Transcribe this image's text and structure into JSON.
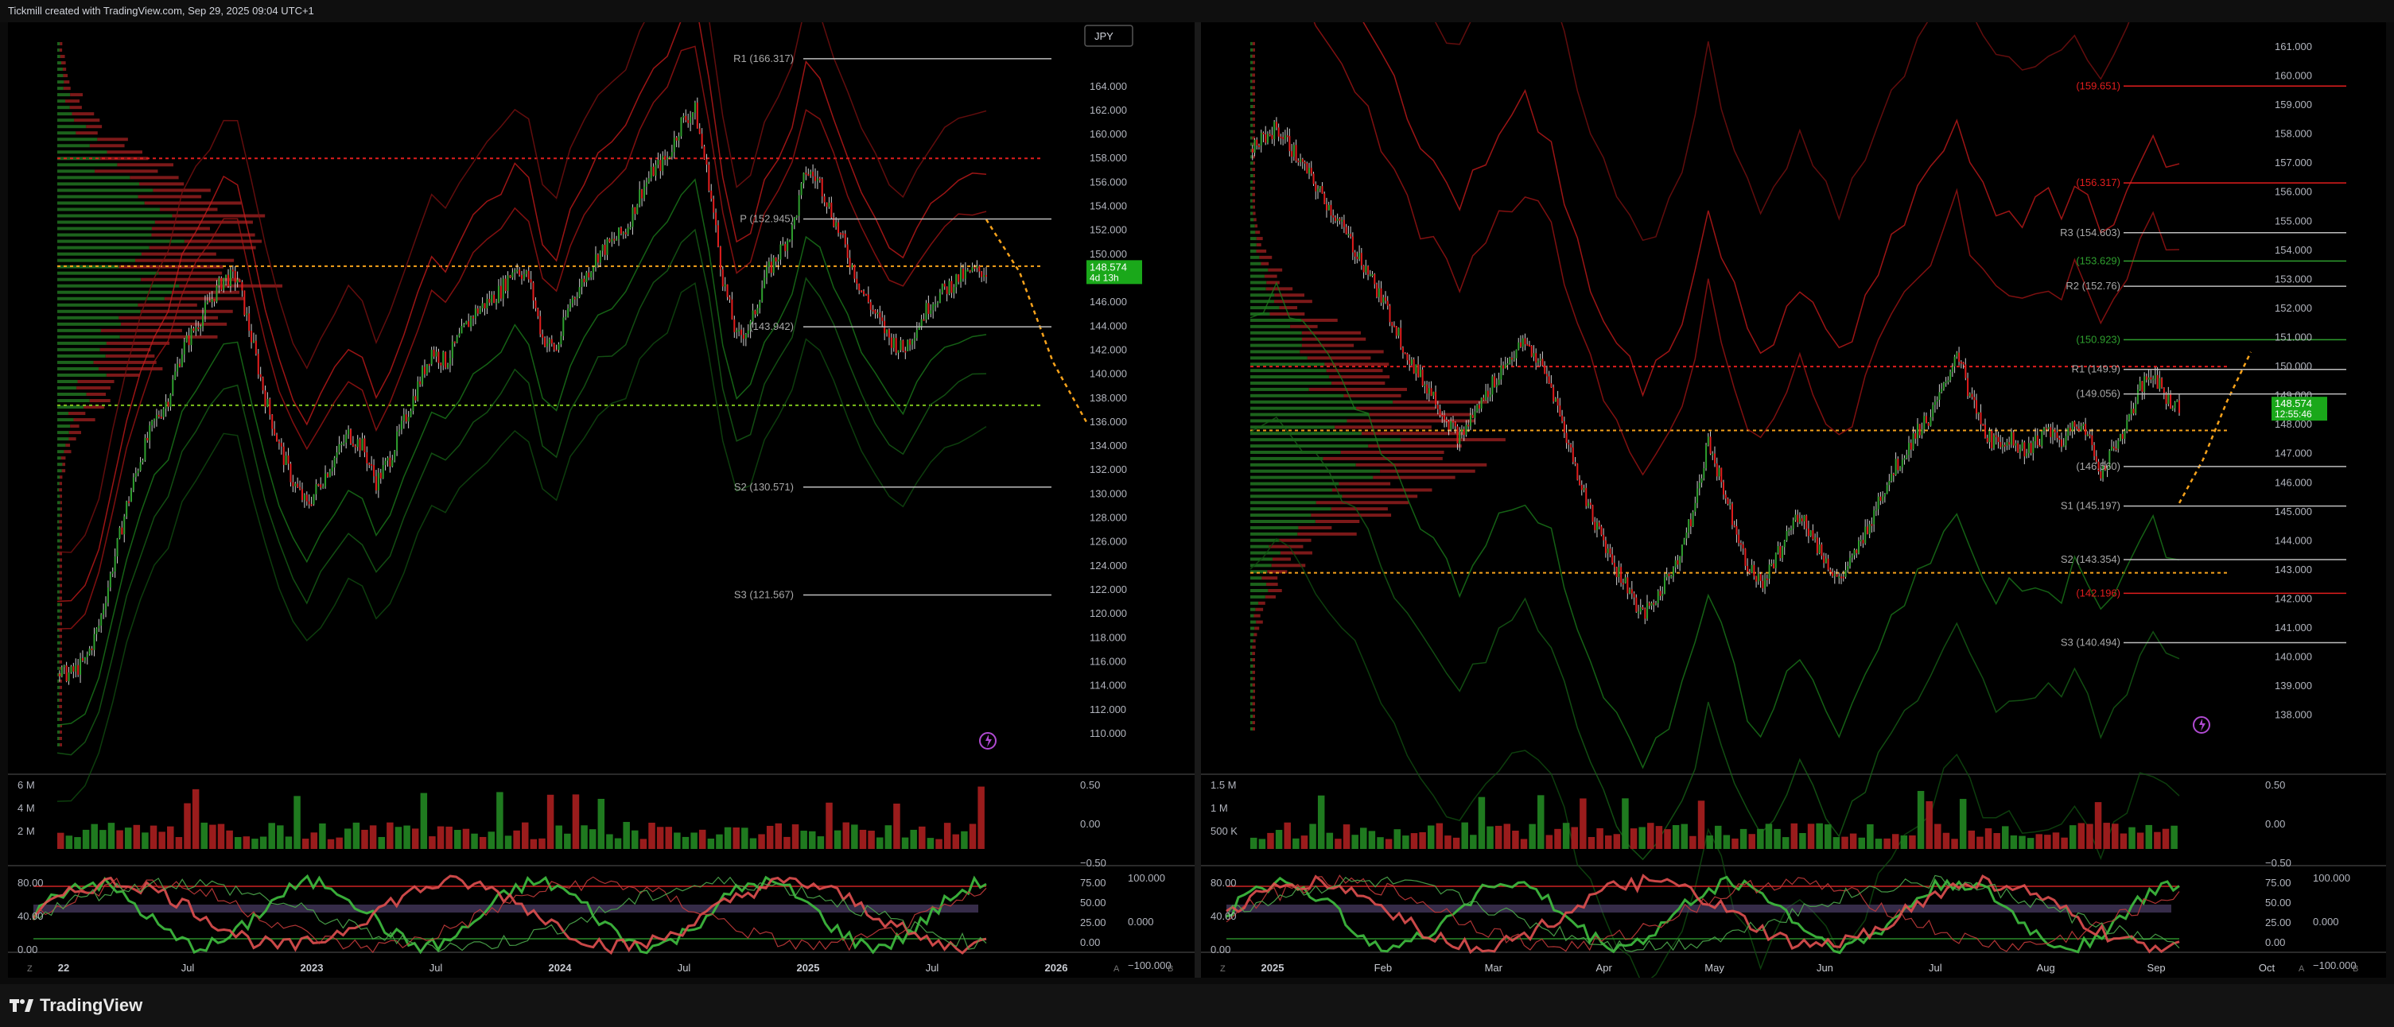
{
  "header": {
    "caption": "Tickmill created with TradingView.com, Sep 29, 2025 09:04 UTC+1"
  },
  "footer": {
    "brand": "TradingView"
  },
  "colors": {
    "up": "#2e9e2e",
    "down": "#e11d1d",
    "bg": "#000000",
    "accent": "#f7a21b",
    "price_badge": "#1aa81a"
  },
  "chart_data": [
    {
      "type": "candlestick",
      "title": "",
      "currency_button": "JPY",
      "price_label": "148.574",
      "countdown": "4d 13h",
      "y_ticks": [
        "164.000",
        "162.000",
        "160.000",
        "158.000",
        "156.000",
        "154.000",
        "152.000",
        "150.000",
        "148.000",
        "146.000",
        "144.000",
        "142.000",
        "140.000",
        "138.000",
        "136.000",
        "134.000",
        "132.000",
        "130.000",
        "128.000",
        "126.000",
        "124.000",
        "122.000",
        "120.000",
        "118.000",
        "116.000",
        "114.000",
        "112.000",
        "110.000"
      ],
      "ylim": [
        109.0,
        167.5
      ],
      "x_ticks": [
        "22",
        "Jul",
        "2023",
        "Jul",
        "2024",
        "Jul",
        "2025",
        "Jul",
        "2026"
      ],
      "pivots": [
        {
          "label": "R1 (166.317)",
          "value": 166.317
        },
        {
          "label": "P (152.945)",
          "value": 152.945
        },
        {
          "label": "(143.942)",
          "value": 143.942
        },
        {
          "label": "S2 (130.571)",
          "value": 130.571
        },
        {
          "label": "S3 (121.567)",
          "value": 121.567
        }
      ],
      "horizontal_lines": [
        {
          "value": 158.0,
          "color": "#e11d1d"
        },
        {
          "value": 149.0,
          "color": "#f7a21b"
        },
        {
          "value": 137.4,
          "color": "#7ec21b"
        }
      ],
      "price_path": [
        115,
        115,
        116,
        119,
        124,
        129,
        133,
        136,
        138,
        142,
        144,
        146,
        148,
        148,
        143,
        138,
        134,
        131,
        129,
        131,
        133,
        135,
        134,
        131,
        133,
        136,
        139,
        142,
        141,
        143,
        145,
        146,
        147,
        149,
        148,
        143,
        142,
        146,
        148,
        150,
        151,
        152,
        155,
        157,
        158,
        161,
        162,
        156,
        148,
        143,
        144,
        148,
        150,
        152,
        157,
        156,
        153,
        150,
        147,
        145,
        143,
        142,
        144,
        146,
        147,
        148,
        148.5,
        148.6
      ],
      "projection": [
        152.9,
        148.5,
        141,
        136
      ],
      "volume": {
        "ticks": [
          "6 M",
          "4 M",
          "2 M"
        ],
        "right_ticks": [
          "0.50",
          "0.00",
          "−0.50"
        ]
      },
      "oscillator": {
        "ticks": [
          "80.00",
          "40.00",
          "0.00"
        ],
        "right_ticks": [
          "75.00",
          "50.00",
          "25.00",
          "0.00"
        ],
        "right_ticks2": [
          "100.000",
          "0.000",
          "−100.000"
        ]
      }
    },
    {
      "type": "candlestick",
      "title": "",
      "price_label": "148.574",
      "countdown": "12:55:46",
      "y_ticks": [
        "161.000",
        "160.000",
        "159.000",
        "158.000",
        "157.000",
        "156.000",
        "155.000",
        "154.000",
        "153.000",
        "152.000",
        "151.000",
        "150.000",
        "149.000",
        "148.000",
        "147.000",
        "146.000",
        "145.000",
        "144.000",
        "143.000",
        "142.000",
        "141.000",
        "140.000",
        "139.000",
        "138.000"
      ],
      "ylim": [
        137.5,
        161.3
      ],
      "x_ticks": [
        "2025",
        "Feb",
        "Mar",
        "Apr",
        "May",
        "Jun",
        "Jul",
        "Aug",
        "Sep",
        "Oct"
      ],
      "pivots": [
        {
          "label": "(159.651)",
          "value": 159.651,
          "color": "#e11d1d"
        },
        {
          "label": "(156.317)",
          "value": 156.317,
          "color": "#e11d1d"
        },
        {
          "label": "R3 (154.603)",
          "value": 154.603
        },
        {
          "label": "(153.629)",
          "value": 153.629,
          "color": "#2e9e2e"
        },
        {
          "label": "R2 (152.76)",
          "value": 152.76
        },
        {
          "label": "(150.923)",
          "value": 150.923,
          "color": "#2e9e2e"
        },
        {
          "label": "R1 (149.9)",
          "value": 149.9
        },
        {
          "label": "(149.056)",
          "value": 149.056
        },
        {
          "label": "(146.560)",
          "value": 146.56
        },
        {
          "label": "S1 (145.197)",
          "value": 145.197
        },
        {
          "label": "S2 (143.354)",
          "value": 143.354
        },
        {
          "label": "(142.196)",
          "value": 142.196,
          "color": "#e11d1d"
        },
        {
          "label": "S3 (140.494)",
          "value": 140.494
        }
      ],
      "horizontal_lines": [
        {
          "value": 150.0,
          "color": "#e11d1d"
        },
        {
          "value": 147.8,
          "color": "#f7a21b"
        },
        {
          "value": 142.9,
          "color": "#f7a21b"
        }
      ],
      "price_path": [
        157.5,
        157.8,
        158.2,
        157.6,
        156.9,
        156.2,
        155.5,
        154.8,
        154.0,
        153.3,
        152.3,
        151.5,
        150.4,
        149.6,
        149.0,
        148.2,
        147.5,
        148.3,
        149.0,
        149.8,
        150.4,
        150.8,
        150.2,
        149.3,
        147.8,
        146.3,
        145.0,
        144.0,
        143.0,
        142.3,
        141.4,
        142.0,
        142.8,
        143.8,
        145.2,
        147.5,
        146.0,
        144.6,
        143.2,
        142.5,
        143.2,
        144.2,
        145.0,
        144.1,
        143.3,
        142.6,
        143.3,
        144.3,
        145.4,
        146.3,
        147.0,
        147.8,
        148.3,
        149.2,
        150.6,
        149.0,
        147.8,
        147.3,
        147.6,
        147.1,
        147.4,
        147.8,
        147.3,
        148.2,
        147.6,
        146.4,
        147.2,
        148.0,
        149.2,
        149.8,
        148.9,
        148.6
      ],
      "projection": [
        145.3,
        146.8,
        148.8,
        150.5
      ],
      "volume": {
        "ticks": [
          "1.5 M",
          "1 M",
          "500 K"
        ],
        "right_ticks": [
          "0.50",
          "0.00",
          "−0.50"
        ]
      },
      "oscillator": {
        "ticks": [
          "80.00",
          "40.00",
          "0.00"
        ],
        "right_ticks": [
          "75.00",
          "50.00",
          "25.00",
          "0.00"
        ],
        "right_ticks2": [
          "100.000",
          "0.000",
          "−100.000"
        ]
      }
    }
  ]
}
